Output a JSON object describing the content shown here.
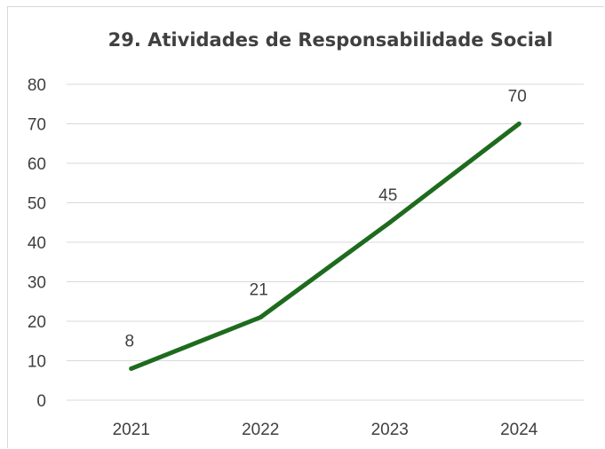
{
  "chart_data": {
    "type": "line",
    "title": "29. Atividades de Responsabilidade Social",
    "xlabel": "",
    "ylabel": "",
    "categories": [
      "2021",
      "2022",
      "2023",
      "2024"
    ],
    "series": [
      {
        "values": [
          8,
          21,
          45,
          70
        ],
        "color": "#1e6b1e"
      }
    ],
    "data_labels": [
      "8",
      "21",
      "45",
      "70"
    ],
    "y_ticks": [
      "0",
      "10",
      "20",
      "30",
      "40",
      "50",
      "60",
      "70",
      "80"
    ],
    "ylim": [
      0,
      80
    ],
    "grid": true,
    "legend": "none"
  }
}
